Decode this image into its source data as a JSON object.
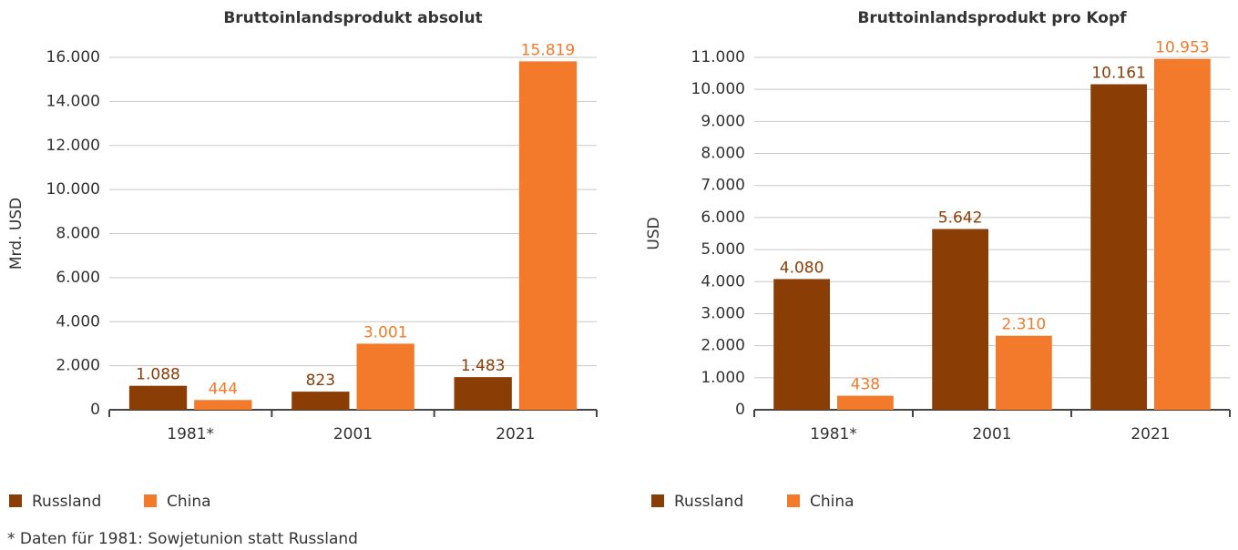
{
  "chart_data": [
    {
      "type": "bar",
      "title": "Bruttoinlandsprodukt absolut",
      "ylabel": "Mrd. USD",
      "categories": [
        "1981*",
        "2001",
        "2021"
      ],
      "series": [
        {
          "name": "Russland",
          "color": "#8b3d06",
          "values": [
            1088,
            823,
            1483
          ],
          "value_labels": [
            "1.088",
            "823",
            "1.483"
          ]
        },
        {
          "name": "China",
          "color": "#f47a2b",
          "values": [
            444,
            3001,
            15819
          ],
          "value_labels": [
            "444",
            "3.001",
            "15.819"
          ]
        }
      ],
      "ylim": [
        0,
        16000
      ],
      "yticks": [
        0,
        {
          "value": 2000,
          "label": "2.000"
        },
        {
          "value": 4000,
          "label": "4.000"
        },
        {
          "value": 6000,
          "label": "6.000"
        },
        {
          "value": 8000,
          "label": "8.000"
        },
        {
          "value": 10000,
          "label": "10.000"
        },
        {
          "value": 12000,
          "label": "12.000"
        },
        {
          "value": 14000,
          "label": "14.000"
        },
        {
          "value": 16000,
          "label": "16.000"
        }
      ],
      "grid": true,
      "legend": "bottom-left"
    },
    {
      "type": "bar",
      "title": "Bruttoinlandsprodukt pro Kopf",
      "ylabel": "USD",
      "categories": [
        "1981*",
        "2001",
        "2021"
      ],
      "series": [
        {
          "name": "Russland",
          "color": "#8b3d06",
          "values": [
            4080,
            5642,
            10161
          ],
          "value_labels": [
            "4.080",
            "5.642",
            "10.161"
          ]
        },
        {
          "name": "China",
          "color": "#f47a2b",
          "values": [
            438,
            2310,
            10953
          ],
          "value_labels": [
            "438",
            "2.310",
            "10.953"
          ]
        }
      ],
      "ylim": [
        0,
        11000
      ],
      "yticks": [
        0,
        {
          "value": 1000,
          "label": "1.000"
        },
        {
          "value": 2000,
          "label": "2.000"
        },
        {
          "value": 3000,
          "label": "3.000"
        },
        {
          "value": 4000,
          "label": "4.000"
        },
        {
          "value": 5000,
          "label": "5.000"
        },
        {
          "value": 6000,
          "label": "6.000"
        },
        {
          "value": 7000,
          "label": "7.000"
        },
        {
          "value": 8000,
          "label": "8.000"
        },
        {
          "value": 9000,
          "label": "9.000"
        },
        {
          "value": 10000,
          "label": "10.000"
        },
        {
          "value": 11000,
          "label": "11.000"
        }
      ],
      "grid": true,
      "legend": "bottom-left"
    }
  ],
  "footnote": "* Daten für 1981: Sowjetunion statt Russland"
}
